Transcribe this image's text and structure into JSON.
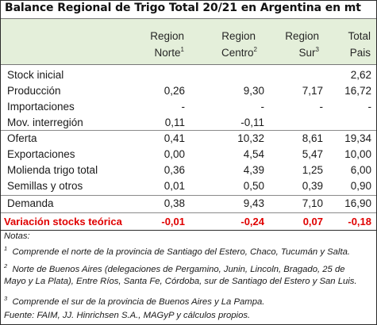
{
  "title": "Balance Regional de Trigo Total 20/21 en Argentina en mt",
  "columns": [
    {
      "line1": "Region",
      "line2": "Norte",
      "sup": "1"
    },
    {
      "line1": "Region",
      "line2": "Centro",
      "sup": "2"
    },
    {
      "line1": "Region",
      "line2": "Sur",
      "sup": "3"
    },
    {
      "line1": "Total",
      "line2": "Pais",
      "sup": ""
    }
  ],
  "rows": [
    {
      "label": "Stock inicial",
      "values": [
        "",
        "",
        "",
        "2,62"
      ]
    },
    {
      "label": "Producción",
      "values": [
        "0,26",
        "9,30",
        "7,17",
        "16,72"
      ]
    },
    {
      "label": "Importaciones",
      "values": [
        "-",
        "-",
        "-",
        "-"
      ]
    },
    {
      "label": "Mov. interregión",
      "values": [
        "0,11",
        "-0,11",
        "",
        ""
      ]
    },
    {
      "label": "Oferta",
      "values": [
        "0,41",
        "10,32",
        "8,61",
        "19,34"
      ]
    },
    {
      "label": "Exportaciones",
      "values": [
        "0,00",
        "4,54",
        "5,47",
        "10,00"
      ]
    },
    {
      "label": "Molienda trigo total",
      "values": [
        "0,36",
        "4,39",
        "1,25",
        "6,00"
      ]
    },
    {
      "label": "Semillas y otros",
      "values": [
        "0,01",
        "0,50",
        "0,39",
        "0,90"
      ]
    },
    {
      "label": "Demanda",
      "values": [
        "0,38",
        "9,43",
        "7,10",
        "16,90"
      ]
    },
    {
      "label": "Variación stocks teórica",
      "values": [
        "-0,01",
        "-0,24",
        "0,07",
        "-0,18"
      ]
    }
  ],
  "notes": {
    "heading": "Notas:",
    "note1_num": "1",
    "note1": "Comprende el norte de la provincia de Santiago del Estero, Chaco, Tucumán y Salta.",
    "note2_num": "2",
    "note2_line1": "Norte de Buenos Aires (delegaciones de Pergamino, Junin, Lincoln, Bragado, 25 de",
    "note2_line2": "Mayo y La Plata), Entre Ríos, Santa Fe, Córdoba, sur de Santiago del Estero y San Luis.",
    "note3_num": "3",
    "note3": "Comprende el sur de la provincia de Buenos Aires y La Pampa.",
    "source": "Fuente: FAIM, JJ. Hinrichsen S.A., MAGyP y cálculos propios."
  },
  "colors": {
    "header_bg": "#e4efda",
    "total_row": "#e00000"
  }
}
